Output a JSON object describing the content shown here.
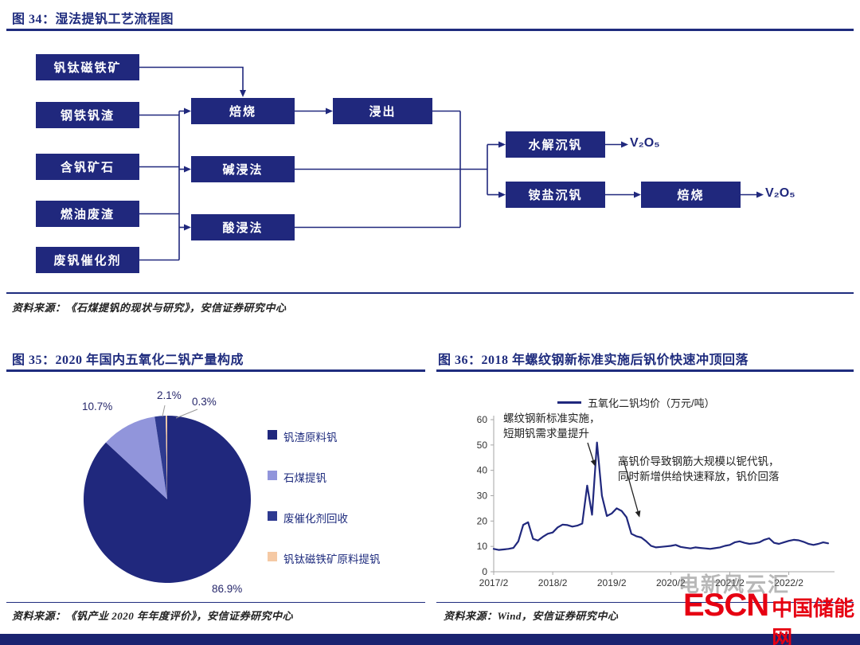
{
  "page": {
    "accent": "#1F2C7E",
    "bottom_bar_color": "#1A2370"
  },
  "fig34": {
    "title": "图 34：湿法提钒工艺流程图",
    "source": "资料来源：《石煤提钒的现状与研究》，安信证券研究中心",
    "boxes": {
      "vtm": "钒钛磁铁矿",
      "slag": "钢铁钒渣",
      "ore": "含钒矿石",
      "fuel": "燃油废渣",
      "catalyst": "废钒催化剂",
      "roast": "焙烧",
      "leach": "浸出",
      "alkali": "碱浸法",
      "acid": "酸浸法",
      "hydrolysis": "水解沉钒",
      "ammonium": "铵盐沉钒",
      "roast2": "焙烧",
      "v2o5_1": "V₂O₅",
      "v2o5_2": "V₂O₅"
    }
  },
  "fig35": {
    "title": "图 35：2020 年国内五氧化二钒产量构成",
    "source": "资料来源：《钒产业 2020 年年度评价》，安信证券研究中心"
  },
  "fig36": {
    "title": "图 36：2018 年螺纹钢新标准实施后钒价快速冲顶回落",
    "source": "资料来源：Wind，安信证券研究中心",
    "annotation1": "螺纹钢新标准实施，短期钒需求量提升",
    "annotation2": "高钒价导致钢筋大规模以铌代钒，同时新增供给快速释放，钒价回落"
  },
  "footer": {
    "watermark": "电新风云汇",
    "logo_escn": "ESCN",
    "logo_cn": "中国储能网"
  },
  "chart_data": [
    {
      "type": "pie",
      "title": "2020 年国内五氧化二钒产量构成",
      "categories": [
        "钒渣原料钒",
        "石煤提钒",
        "废催化剂回收",
        "钒钛磁铁矿原料提钒"
      ],
      "values": [
        86.9,
        10.7,
        2.1,
        0.3
      ],
      "colors": [
        "#20287D",
        "#9195DB",
        "#2E3A90",
        "#F5C9A4"
      ],
      "start_angle": "top",
      "direction": "clockwise",
      "legend_position": "right"
    },
    {
      "type": "line",
      "title": "2018 年螺纹钢新标准实施后钒价快速冲顶回落",
      "series": [
        {
          "name": "五氧化二钒均价（万元/吨）",
          "values": [
            9.0,
            8.6,
            8.8,
            9.0,
            9.4,
            12.0,
            18.5,
            19.5,
            13.0,
            12.3,
            13.8,
            15.0,
            15.5,
            17.5,
            18.6,
            18.4,
            17.8,
            18.2,
            19.0,
            34.0,
            22.5,
            51.0,
            30.0,
            22.0,
            23.0,
            25.0,
            24.0,
            21.5,
            15.0,
            14.0,
            13.5,
            12.0,
            10.2,
            9.6,
            9.8,
            10.0,
            10.2,
            10.6,
            9.8,
            9.5,
            9.2,
            9.6,
            9.4,
            9.2,
            9.0,
            9.3,
            9.6,
            10.2,
            10.6,
            11.6,
            12.0,
            11.4,
            11.0,
            11.2,
            11.6,
            12.6,
            13.2,
            11.4,
            11.0,
            11.6,
            12.2,
            12.6,
            12.4,
            11.8,
            11.0,
            10.6,
            11.0,
            11.6,
            11.2
          ]
        }
      ],
      "x_start": "2017/2",
      "x_step": "month",
      "x_tick_labels": [
        "2017/2",
        "2018/2",
        "2019/2",
        "2020/2",
        "2021/2",
        "2022/2"
      ],
      "x_tick_indices": [
        0,
        12,
        24,
        36,
        48,
        60
      ],
      "ylim": [
        0,
        60
      ],
      "y_ticks": [
        0,
        10,
        20,
        30,
        40,
        50,
        60
      ],
      "line_color": "#20287D",
      "grid": false,
      "legend_position": "top"
    }
  ]
}
